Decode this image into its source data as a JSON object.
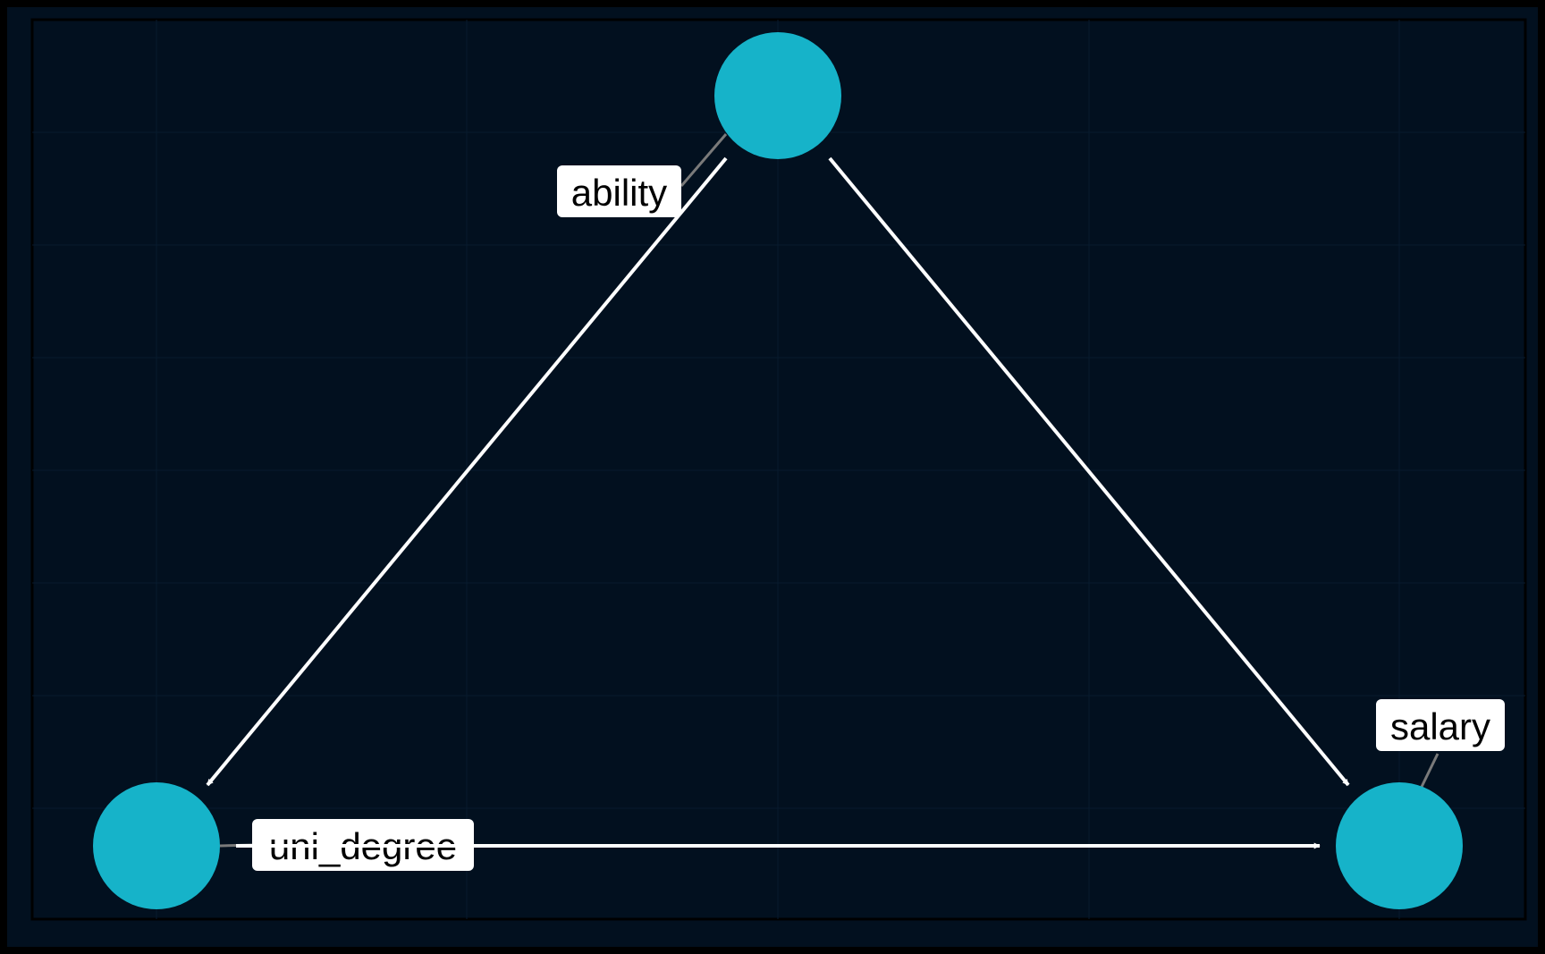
{
  "diagram": {
    "type": "dag",
    "colors": {
      "background": "#000000",
      "panel": "#02101f",
      "grid": "#081a2e",
      "node_fill": "#16b3c9",
      "edge": "#ffffff",
      "leader": "#7a7a7a",
      "label_fill": "#ffffff",
      "label_text": "#000000"
    },
    "nodes": [
      {
        "id": "ability",
        "label": "ability"
      },
      {
        "id": "uni_degree",
        "label": "uni_degree"
      },
      {
        "id": "salary",
        "label": "salary"
      }
    ],
    "edges": [
      {
        "from": "ability",
        "to": "uni_degree"
      },
      {
        "from": "ability",
        "to": "salary"
      },
      {
        "from": "uni_degree",
        "to": "salary"
      }
    ]
  }
}
